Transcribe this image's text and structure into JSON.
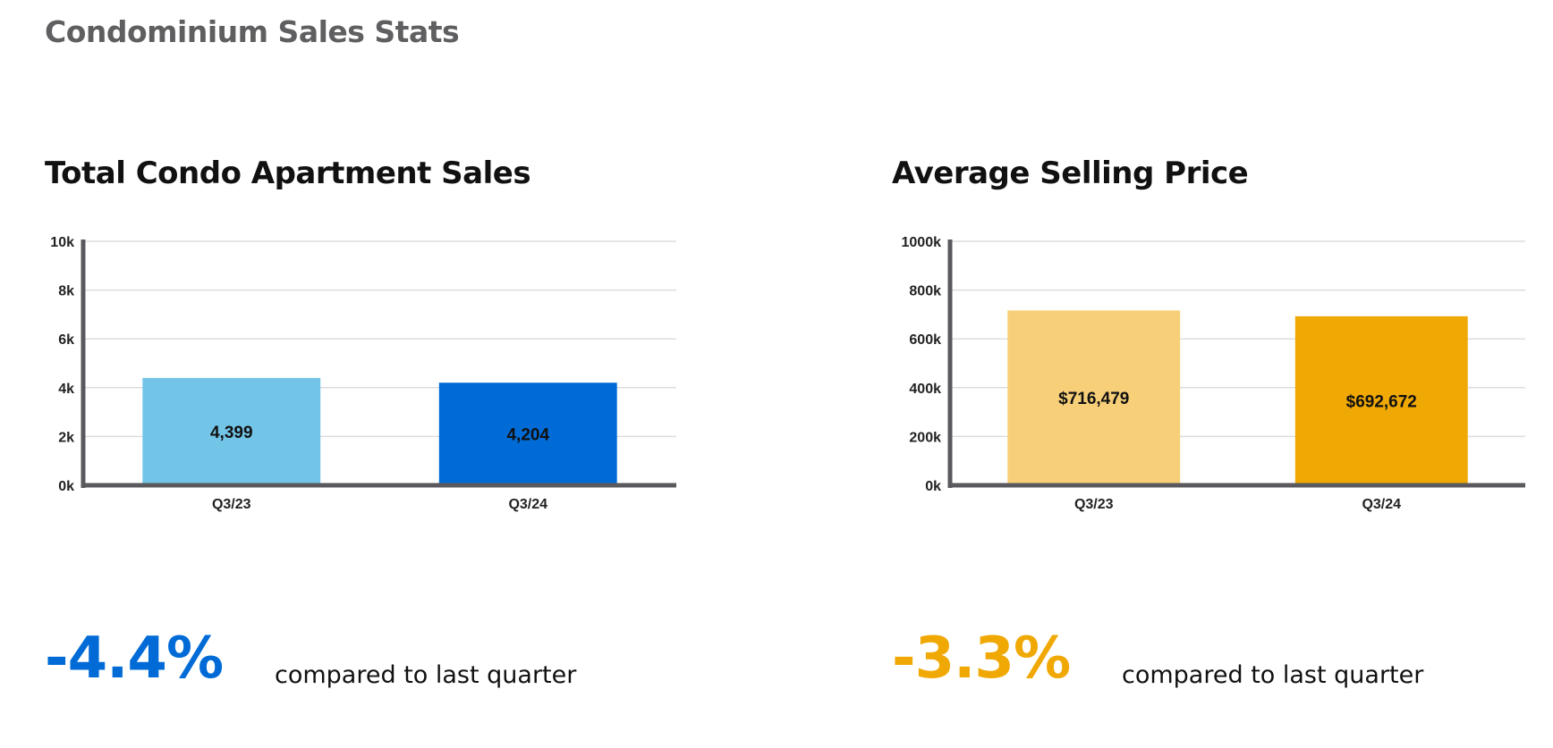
{
  "page": {
    "title": "Condominium Sales Stats"
  },
  "panels": [
    {
      "title": "Total Condo Apartment Sales",
      "change": "-4.4%",
      "change_color": "#006bd6",
      "note": "compared to last quarter"
    },
    {
      "title": "Average Selling Price",
      "change": "-3.3%",
      "change_color": "#f0a804",
      "note": "compared to last quarter"
    }
  ],
  "chart_data": [
    {
      "type": "bar",
      "title": "Total Condo Apartment Sales",
      "categories": [
        "Q3/23",
        "Q3/24"
      ],
      "values": [
        4399,
        4204
      ],
      "value_labels": [
        "4,399",
        "4,204"
      ],
      "bar_colors": [
        "#73c5e8",
        "#006bd6"
      ],
      "ylim": [
        0,
        10000
      ],
      "yticks": [
        0,
        2000,
        4000,
        6000,
        8000,
        10000
      ],
      "ytick_labels": [
        "0k",
        "2k",
        "4k",
        "6k",
        "8k",
        "10k"
      ],
      "grid": true,
      "legend": "none"
    },
    {
      "type": "bar",
      "title": "Average Selling Price",
      "categories": [
        "Q3/23",
        "Q3/24"
      ],
      "values": [
        716479,
        692672
      ],
      "value_labels": [
        "$716,479",
        "$692,672"
      ],
      "bar_colors": [
        "#f7cf78",
        "#f0a804"
      ],
      "ylim": [
        0,
        1000000
      ],
      "yticks": [
        0,
        200000,
        400000,
        600000,
        800000,
        1000000
      ],
      "ytick_labels": [
        "0k",
        "200k",
        "400k",
        "600k",
        "800k",
        "1000k"
      ],
      "grid": true,
      "legend": "none"
    }
  ]
}
